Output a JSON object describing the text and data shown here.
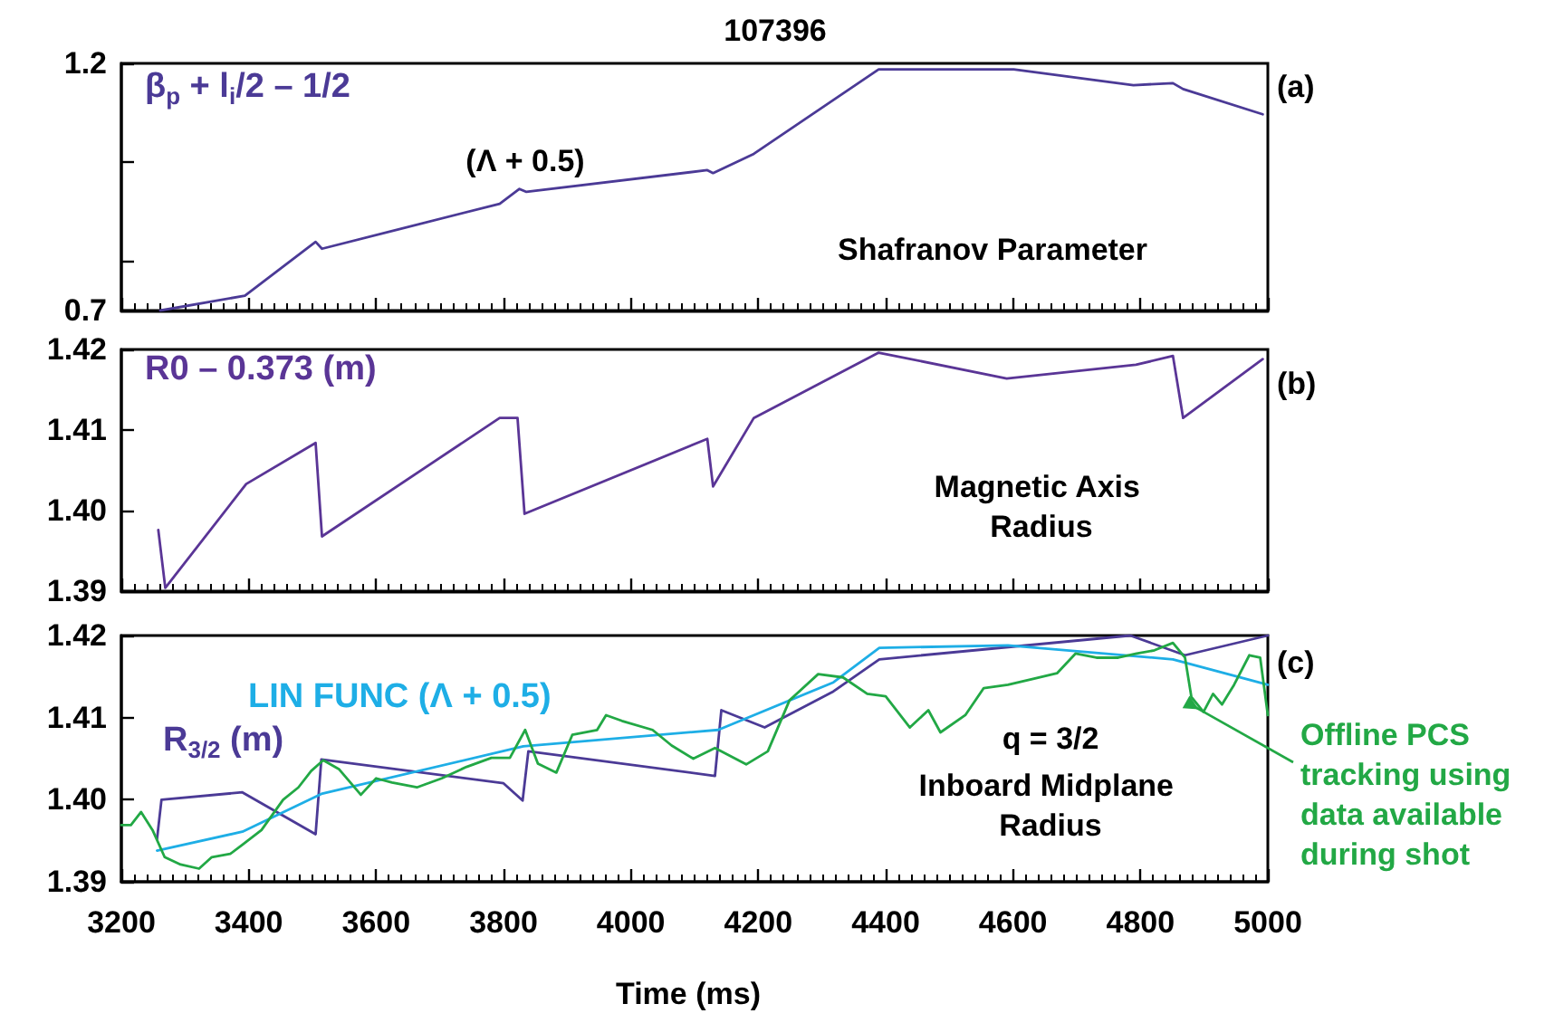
{
  "chart_data": [
    {
      "type": "line",
      "title": "107396",
      "tick_labels": "y",
      "xlim": [
        3200,
        5000
      ],
      "xticks": [
        3200,
        3400,
        3600,
        3800,
        4000,
        4200,
        4400,
        4600,
        4800,
        5000
      ],
      "ylim": [
        0.7,
        1.2
      ],
      "yticks": [
        0.7,
        {
          "value": 0.8,
          "label": null
        },
        {
          "value": 1.0,
          "label": null
        },
        1.2
      ],
      "annotations": [
        "(Λ + 0.5)",
        "Shafranov Parameter",
        "(a)"
      ],
      "series": [
        {
          "name": "β$_{p}$ + l$_{i}$/2 – 1/2",
          "color": "#4b3a96",
          "x": [
            3261,
            3394,
            3505,
            3515,
            3794,
            3825,
            3836,
            4120,
            4129,
            4193,
            4389,
            4601,
            4789,
            4851,
            4867,
            4992
          ],
          "values": [
            0.7,
            0.73,
            0.839,
            0.825,
            0.916,
            0.946,
            0.94,
            0.984,
            0.978,
            1.017,
            1.188,
            1.188,
            1.156,
            1.16,
            1.148,
            1.097
          ]
        }
      ]
    },
    {
      "type": "line",
      "tick_labels": "y",
      "xlim": [
        3200,
        5000
      ],
      "xticks": [
        3200,
        3400,
        3600,
        3800,
        4000,
        4200,
        4400,
        4600,
        4800,
        5000
      ],
      "ylim": [
        1.39,
        1.42
      ],
      "yticks": [
        1.39,
        {
          "value": 1.4,
          "label": "1.40"
        },
        1.41,
        1.42
      ],
      "annotations": [
        "Magnetic Axis Radius",
        "(b)"
      ],
      "series": [
        {
          "name": "R0 – 0.373 (m)",
          "color": "#5a3596",
          "x": [
            3258,
            3269,
            3396,
            3505,
            3515,
            3794,
            3822,
            3833,
            4120,
            4129,
            4193,
            4389,
            4590,
            4793,
            4851,
            4867,
            4992
          ],
          "values": [
            1.3976,
            1.3904,
            1.4033,
            1.4084,
            1.3968,
            1.4115,
            1.4115,
            1.3996,
            1.4089,
            1.403,
            1.4115,
            1.4196,
            1.4164,
            1.4181,
            1.4192,
            1.4115,
            1.4188
          ]
        }
      ]
    },
    {
      "type": "line",
      "xlabel": "Time (ms)",
      "xlim": [
        3200,
        5000
      ],
      "xticks": [
        3200,
        3400,
        3600,
        3800,
        4000,
        4200,
        4400,
        4600,
        4800,
        5000
      ],
      "ylim": [
        1.39,
        1.42
      ],
      "yticks": [
        1.39,
        {
          "value": 1.4,
          "label": "1.40"
        },
        1.41,
        1.42
      ],
      "annotations": [
        "q = 3/2",
        "Inboard Midplane Radius",
        "(c)"
      ],
      "series": [
        {
          "name": "R$_{3/2}$ (m)",
          "color": "#4b3a96",
          "x": [
            3256,
            3263,
            3390,
            3505,
            3514,
            3800,
            3830,
            3839,
            4132,
            4142,
            4210,
            4318,
            4390,
            4784,
            4870,
            5000
          ],
          "values": [
            1.3952,
            1.4,
            1.4009,
            1.3958,
            1.4049,
            1.402,
            1.3999,
            1.4059,
            1.4029,
            1.4109,
            1.4088,
            1.4132,
            1.4171,
            1.42,
            1.4176,
            1.42
          ]
        },
        {
          "name": "LIN FUNC (Λ + 0.5)",
          "color": "#1eaee6",
          "x": [
            3256,
            3390,
            3514,
            3831,
            4137,
            4318,
            4390,
            4592,
            4851,
            5000
          ],
          "values": [
            1.3938,
            1.3961,
            1.4007,
            1.4065,
            1.4085,
            1.4143,
            1.4185,
            1.4188,
            1.4171,
            1.414
          ]
        },
        {
          "name": "Offline PCS tracking using data available during shot",
          "color": "#22a845",
          "x": [
            3200,
            3215,
            3231,
            3249,
            3268,
            3293,
            3322,
            3342,
            3371,
            3390,
            3420,
            3454,
            3478,
            3498,
            3517,
            3542,
            3576,
            3600,
            3625,
            3664,
            3703,
            3742,
            3781,
            3810,
            3834,
            3854,
            3883,
            3908,
            3947,
            3961,
            3986,
            4034,
            4064,
            4098,
            4132,
            4181,
            4215,
            4249,
            4294,
            4333,
            4371,
            4400,
            4438,
            4467,
            4486,
            4525,
            4554,
            4592,
            4630,
            4669,
            4698,
            4731,
            4765,
            4794,
            4822,
            4851,
            4870,
            4880,
            4899,
            4914,
            4928,
            4947,
            4971,
            4988,
            5000
          ],
          "values": [
            1.3969,
            1.3969,
            1.3985,
            1.3963,
            1.393,
            1.3921,
            1.3916,
            1.393,
            1.3934,
            1.3945,
            1.3963,
            1.4,
            1.4015,
            1.4035,
            1.4048,
            1.4037,
            1.4006,
            1.4026,
            1.4021,
            1.4015,
            1.4026,
            1.404,
            1.4051,
            1.4051,
            1.4085,
            1.4044,
            1.4033,
            1.4079,
            1.4085,
            1.4103,
            1.4096,
            1.4085,
            1.4066,
            1.405,
            1.4063,
            1.4043,
            1.4059,
            1.4121,
            1.4153,
            1.4149,
            1.4129,
            1.4126,
            1.4088,
            1.4109,
            1.4082,
            1.4103,
            1.4136,
            1.414,
            1.4147,
            1.4154,
            1.4178,
            1.4173,
            1.4173,
            1.4178,
            1.4182,
            1.4191,
            1.4173,
            1.4125,
            1.4107,
            1.4129,
            1.4116,
            1.414,
            1.4176,
            1.4173,
            1.4103
          ]
        }
      ]
    }
  ]
}
